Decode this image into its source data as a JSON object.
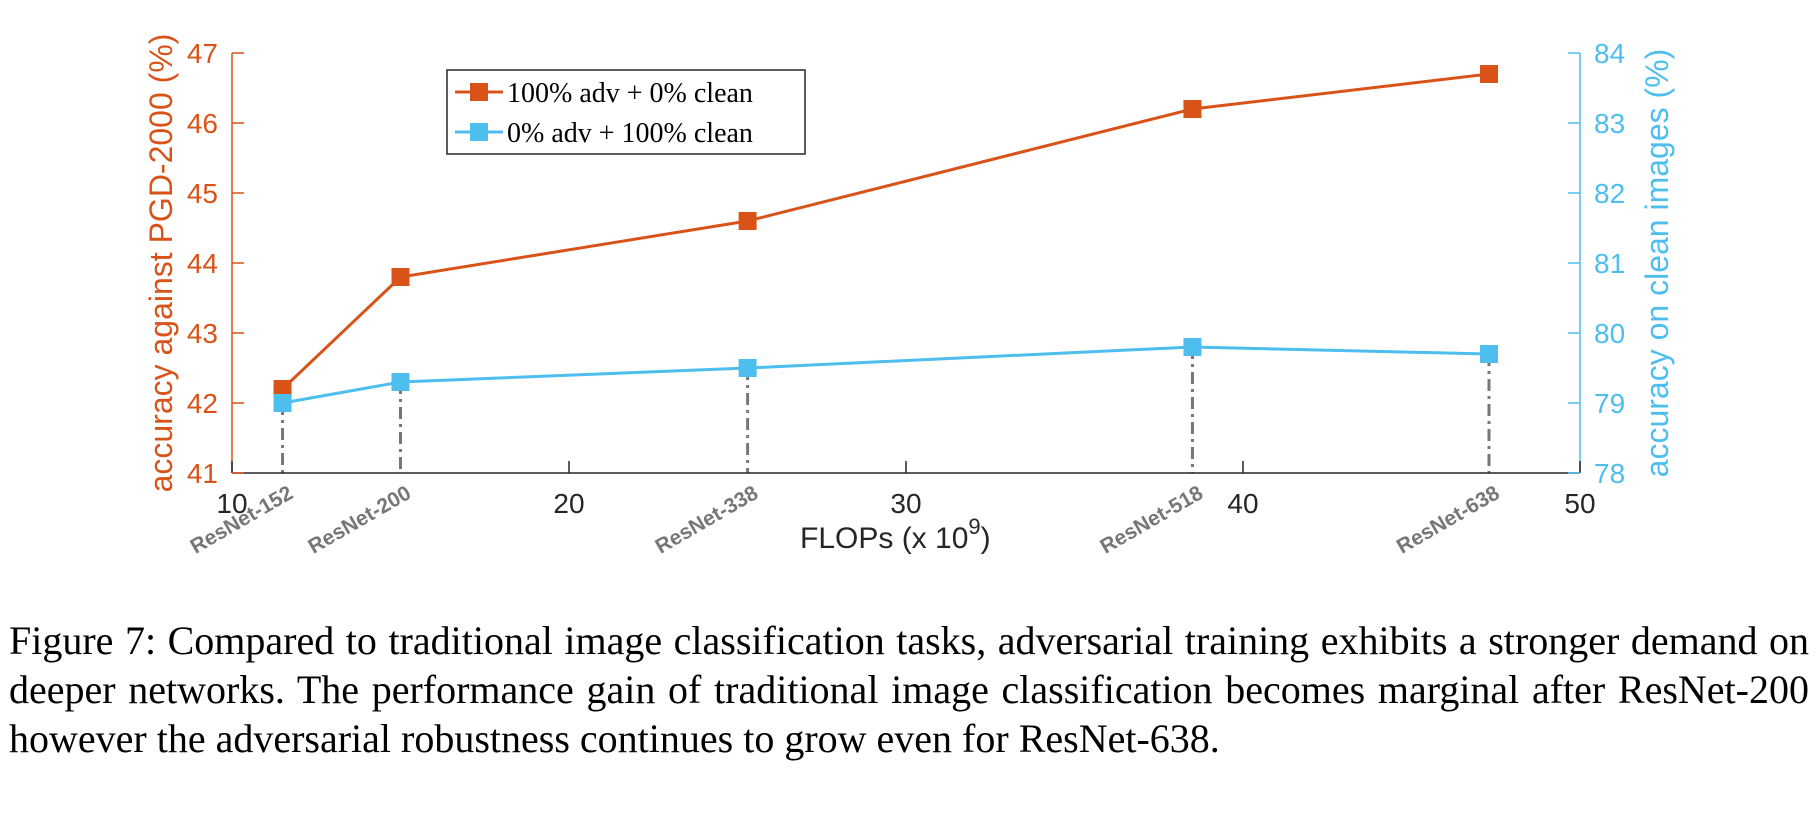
{
  "chart_data": {
    "type": "line",
    "xlabel": "FLOPs (x 10",
    "xlabel_exponent": "9",
    "xlabel_suffix": ")",
    "xlim": [
      10,
      50
    ],
    "xticks": [
      "10",
      "20",
      "30",
      "40",
      "50"
    ],
    "y_left": {
      "label": "accuracy against PGD-2000 (%)",
      "lim": [
        41,
        47
      ],
      "ticks": [
        "41",
        "42",
        "43",
        "44",
        "45",
        "46",
        "47"
      ],
      "color": "#D95319"
    },
    "y_right": {
      "label": "accuracy on clean images (%)",
      "lim": [
        78,
        84
      ],
      "ticks": [
        "78",
        "79",
        "80",
        "81",
        "82",
        "83",
        "84"
      ],
      "color": "#4DBEEE"
    },
    "x": [
      11.5,
      15.0,
      25.3,
      38.5,
      47.3
    ],
    "point_labels": [
      "ResNet-152",
      "ResNet-200",
      "ResNet-338",
      "ResNet-518",
      "ResNet-638"
    ],
    "series": [
      {
        "name": "100% adv + 0% clean",
        "axis": "left",
        "color": "#D95319",
        "values": [
          42.2,
          43.8,
          44.6,
          46.2,
          46.7
        ]
      },
      {
        "name": "0% adv + 100% clean",
        "axis": "right",
        "color": "#4DBEEE",
        "values": [
          79.0,
          79.3,
          79.5,
          79.8,
          79.7
        ]
      }
    ],
    "guide_color": "#777777",
    "legend_position": "top-left"
  },
  "caption": {
    "text": "Figure 7: Compared to traditional image classification tasks, adversarial training exhibits a stronger demand on deeper networks.  The performance gain of traditional image classification becomes marginal after ResNet-200 however the adversarial robustness continues to grow even for ResNet-638."
  }
}
